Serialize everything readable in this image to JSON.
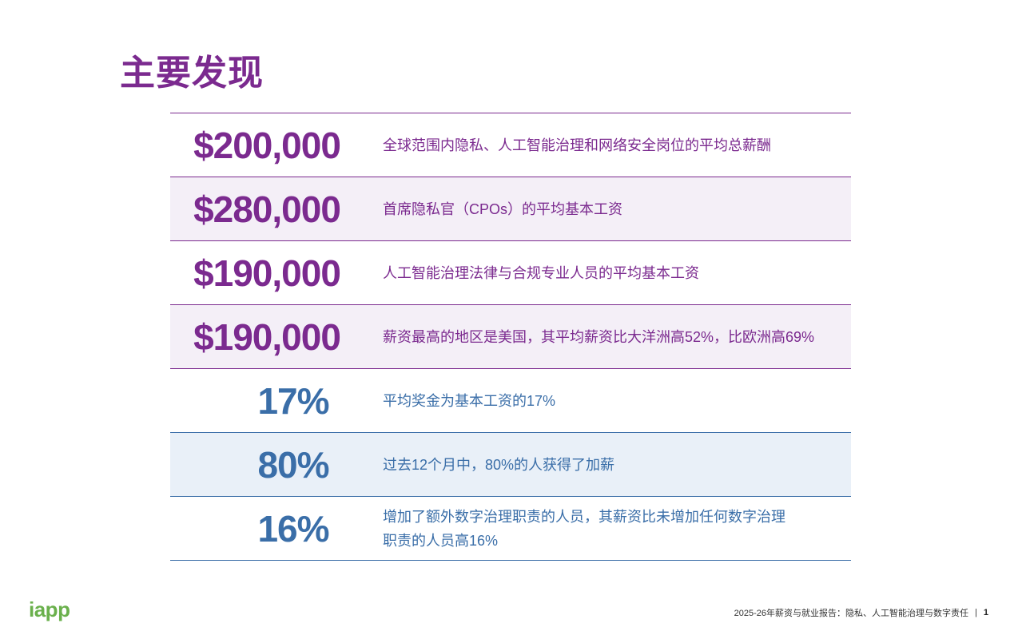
{
  "title": "主要发现",
  "findings": [
    {
      "stat": "$200,000",
      "text": "全球范围内隐私、人工智能治理和网络安全岗位的平均总薪酬"
    },
    {
      "stat": "$280,000",
      "text": "首席隐私官（CPOs）的平均基本工资"
    },
    {
      "stat": "$190,000",
      "text": "人工智能治理法律与合规专业人员的平均基本工资"
    },
    {
      "stat": "$190,000",
      "text": "薪资最高的地区是美国，其平均薪资比大洋洲高52%，比欧洲高69%"
    },
    {
      "stat": "17%",
      "text": "平均奖金为基本工资的17%"
    },
    {
      "stat": "80%",
      "text": "过去12个月中，80%的人获得了加薪"
    },
    {
      "stat": "16%",
      "text": "增加了额外数字治理职责的人员，其薪资比未增加任何数字治理职责的人员高16%"
    }
  ],
  "footer": {
    "logo": "iapp",
    "report_title": "2025-26年薪资与就业报告：隐私、人工智能治理与数字责任",
    "separator": "|",
    "page_number": "1"
  },
  "colors": {
    "purple": "#7b2a8f",
    "blue": "#3a6ea8",
    "green": "#6ab04c"
  }
}
